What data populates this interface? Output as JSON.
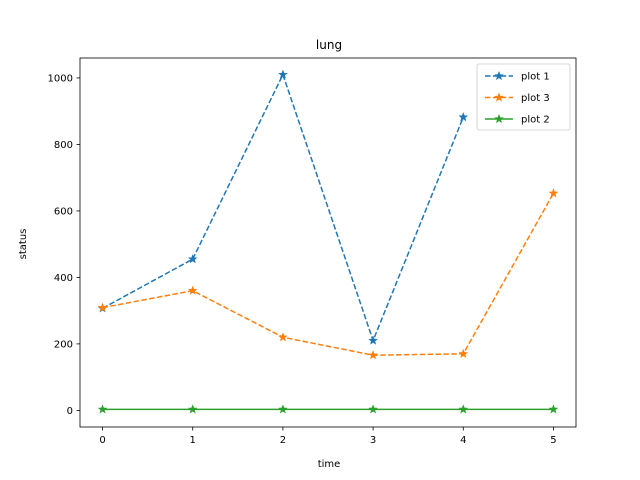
{
  "chart_data": {
    "type": "line",
    "title": "lung",
    "xlabel": "time",
    "ylabel": "status",
    "xlim": [
      -0.25,
      5.25
    ],
    "ylim": [
      -50,
      1060
    ],
    "xticks": [
      0,
      1,
      2,
      3,
      4,
      5
    ],
    "yticks": [
      0,
      200,
      400,
      600,
      800,
      1000
    ],
    "grid": false,
    "legend_position": "top-right",
    "series": [
      {
        "name": "plot 1",
        "color": "#1f77b4",
        "linestyle": "dashed",
        "marker": "star",
        "x": [
          0,
          1,
          2,
          3,
          4
        ],
        "values": [
          307,
          455,
          1010,
          210,
          882
        ]
      },
      {
        "name": "plot 3",
        "color": "#ff7f0e",
        "linestyle": "dashed",
        "marker": "star",
        "x": [
          0,
          1,
          2,
          3,
          4,
          5
        ],
        "values": [
          309,
          360,
          220,
          166,
          170,
          653
        ]
      },
      {
        "name": "plot 2",
        "color": "#2ca02c",
        "linestyle": "solid",
        "marker": "star",
        "x": [
          0,
          1,
          2,
          3,
          4,
          5
        ],
        "values": [
          3,
          3,
          3,
          3,
          3,
          3
        ]
      }
    ]
  }
}
